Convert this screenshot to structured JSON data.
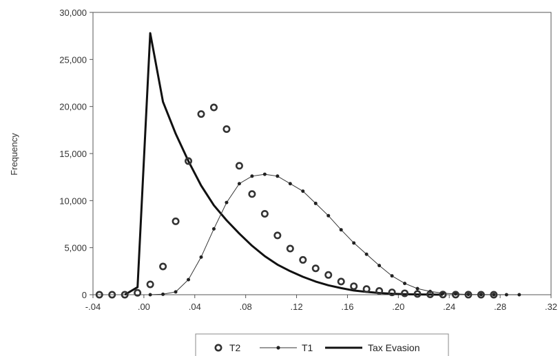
{
  "chart_data": {
    "type": "line",
    "title": "",
    "xlabel": "",
    "ylabel": "Frequency",
    "xlim": [
      -0.04,
      0.32
    ],
    "ylim": [
      0,
      30000
    ],
    "x_ticks": [
      -0.04,
      0.0,
      0.04,
      0.08,
      0.12,
      0.16,
      0.2,
      0.24,
      0.28,
      0.32
    ],
    "x_tick_labels": [
      "-.04",
      ".00",
      ".04",
      ".08",
      ".12",
      ".16",
      ".20",
      ".24",
      ".28",
      ".32"
    ],
    "y_ticks": [
      0,
      5000,
      10000,
      15000,
      20000,
      25000,
      30000
    ],
    "y_tick_labels": [
      "0",
      "5,000",
      "10,000",
      "15,000",
      "20,000",
      "25,000",
      "30,000"
    ],
    "grid": false,
    "legend_position": "bottom",
    "series": [
      {
        "name": "T2",
        "style": "hollow-circle-markers",
        "color": "#333333",
        "x": [
          -0.035,
          -0.025,
          -0.015,
          -0.005,
          0.005,
          0.015,
          0.025,
          0.035,
          0.045,
          0.055,
          0.065,
          0.075,
          0.085,
          0.095,
          0.105,
          0.115,
          0.125,
          0.135,
          0.145,
          0.155,
          0.165,
          0.175,
          0.185,
          0.195,
          0.205,
          0.215,
          0.225,
          0.235,
          0.245,
          0.255,
          0.265,
          0.275
        ],
        "y": [
          0,
          0,
          0,
          200,
          1100,
          3000,
          7800,
          14200,
          19200,
          19900,
          17600,
          13700,
          10700,
          8600,
          6300,
          4900,
          3700,
          2800,
          2100,
          1400,
          900,
          600,
          400,
          250,
          150,
          80,
          40,
          20,
          10,
          5,
          0,
          0
        ]
      },
      {
        "name": "T1",
        "style": "line-with-dot-markers",
        "color": "#333333",
        "x": [
          0.005,
          0.015,
          0.025,
          0.035,
          0.045,
          0.055,
          0.065,
          0.075,
          0.085,
          0.095,
          0.105,
          0.115,
          0.125,
          0.135,
          0.145,
          0.155,
          0.165,
          0.175,
          0.185,
          0.195,
          0.205,
          0.215,
          0.225,
          0.235,
          0.245,
          0.255,
          0.265,
          0.275,
          0.285,
          0.295
        ],
        "y": [
          0,
          50,
          300,
          1600,
          4000,
          7000,
          9800,
          11800,
          12600,
          12800,
          12600,
          11800,
          11000,
          9700,
          8400,
          6900,
          5500,
          4300,
          3100,
          2000,
          1200,
          650,
          350,
          170,
          80,
          30,
          15,
          5,
          0,
          0
        ]
      },
      {
        "name": "Tax Evasion",
        "style": "thick-line",
        "color": "#111111",
        "x": [
          -0.015,
          -0.005,
          0.005,
          0.015,
          0.025,
          0.035,
          0.045,
          0.055,
          0.065,
          0.075,
          0.085,
          0.095,
          0.105,
          0.115,
          0.125,
          0.135,
          0.145,
          0.155,
          0.165,
          0.175,
          0.185,
          0.195,
          0.205,
          0.215,
          0.225,
          0.235
        ],
        "y": [
          0,
          800,
          27800,
          20500,
          17100,
          14200,
          11600,
          9500,
          7900,
          6500,
          5200,
          4100,
          3200,
          2500,
          1900,
          1400,
          1000,
          700,
          450,
          300,
          180,
          100,
          60,
          30,
          15,
          0
        ]
      }
    ]
  }
}
